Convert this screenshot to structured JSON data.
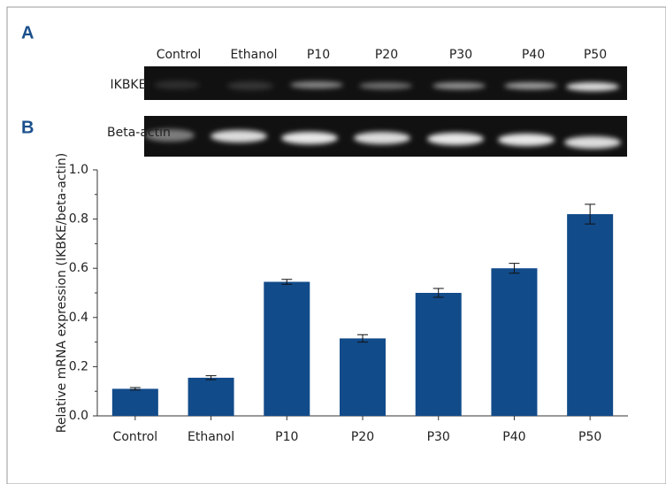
{
  "figure": {
    "panels": [
      "A",
      "B"
    ],
    "gel": {
      "lanes": [
        "Control",
        "Ethanol",
        "P10",
        "P20",
        "P30",
        "P40",
        "P50"
      ],
      "rows": [
        "IKBKE",
        "Beta-actin"
      ]
    }
  },
  "chart_data": {
    "type": "bar",
    "y_label": "Relative mRNA expression (IKBKE/beta-actin)",
    "categories": [
      "Control",
      "Ethanol",
      "P10",
      "P20",
      "P30",
      "P40",
      "P50"
    ],
    "values": [
      0.11,
      0.155,
      0.545,
      0.315,
      0.5,
      0.6,
      0.82
    ],
    "errors": [
      0.005,
      0.008,
      0.01,
      0.015,
      0.018,
      0.02,
      0.04
    ],
    "color": "#124b8a",
    "ylim": [
      0,
      1
    ],
    "yticks": [
      {
        "value": 0,
        "label": "0.0"
      },
      0.2,
      0.4,
      0.6,
      0.8,
      {
        "value": 1,
        "label": "1.0"
      }
    ]
  }
}
